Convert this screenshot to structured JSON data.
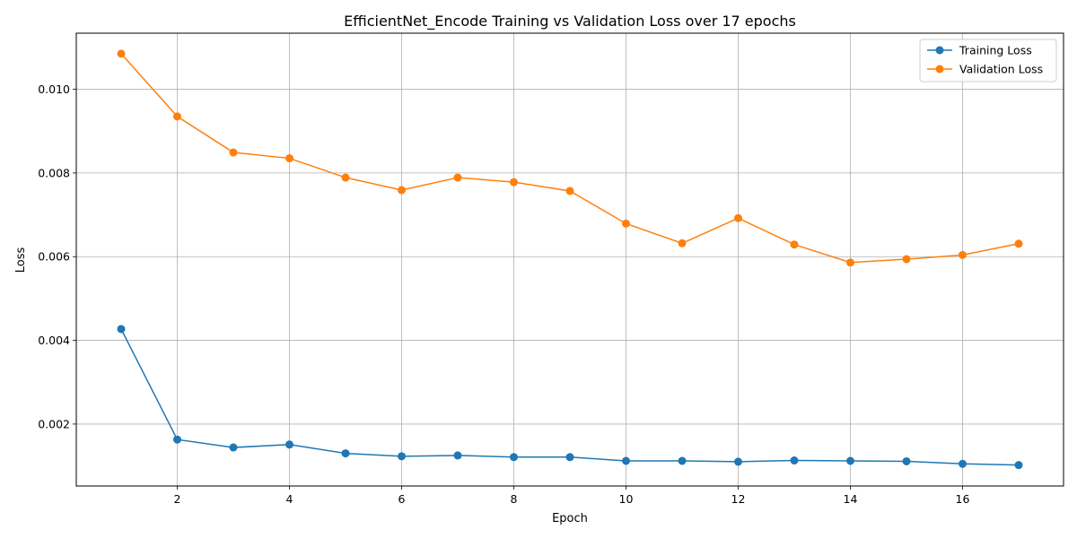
{
  "chart_data": {
    "type": "line",
    "title": "EfficientNet_Encode Training vs Validation Loss over 17 epochs",
    "xlabel": "Epoch",
    "ylabel": "Loss",
    "x": [
      1,
      2,
      3,
      4,
      5,
      6,
      7,
      8,
      9,
      10,
      11,
      12,
      13,
      14,
      15,
      16,
      17
    ],
    "xlim": [
      0.2,
      17.8
    ],
    "ylim": [
      0.00052,
      0.01134
    ],
    "xticks": [
      2,
      4,
      6,
      8,
      10,
      12,
      14,
      16
    ],
    "yticks": [
      0.002,
      0.004,
      0.006,
      0.008,
      0.01
    ],
    "ytick_labels": [
      "0.002",
      "0.004",
      "0.006",
      "0.008",
      "0.010"
    ],
    "grid": true,
    "legend_position": "top-right",
    "series": [
      {
        "name": "Training Loss",
        "color": "#1f77b4",
        "marker": "circle",
        "values": [
          0.00427,
          0.00163,
          0.00144,
          0.00151,
          0.0013,
          0.00123,
          0.00125,
          0.00121,
          0.00121,
          0.00112,
          0.00112,
          0.0011,
          0.00113,
          0.00112,
          0.00111,
          0.00105,
          0.00102
        ]
      },
      {
        "name": "Validation Loss",
        "color": "#ff7f0e",
        "marker": "circle",
        "values": [
          0.01085,
          0.00935,
          0.00849,
          0.00835,
          0.00789,
          0.00759,
          0.00789,
          0.00778,
          0.00757,
          0.00679,
          0.00632,
          0.00692,
          0.00629,
          0.00586,
          0.00594,
          0.00604,
          0.00631
        ]
      }
    ]
  }
}
